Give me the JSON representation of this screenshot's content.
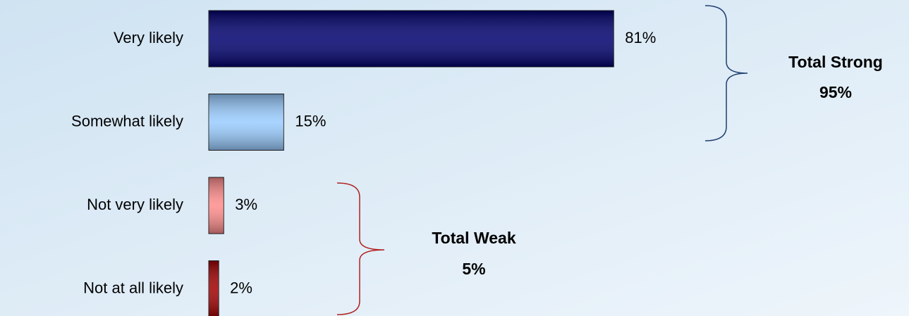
{
  "chart_data": {
    "type": "bar",
    "orientation": "horizontal",
    "categories": [
      "Very likely",
      "Somewhat likely",
      "Not very likely",
      "Not at all likely"
    ],
    "values": [
      81,
      15,
      3,
      2
    ],
    "value_labels": [
      "81%",
      "15%",
      "3%",
      "2%"
    ],
    "colors": [
      "#00006e",
      "#99ccff",
      "#ff8c8c",
      "#a00000"
    ],
    "annotations": [
      {
        "title": "Total Strong",
        "total": "95%"
      },
      {
        "title": "Total Weak",
        "total": "5%"
      }
    ]
  }
}
